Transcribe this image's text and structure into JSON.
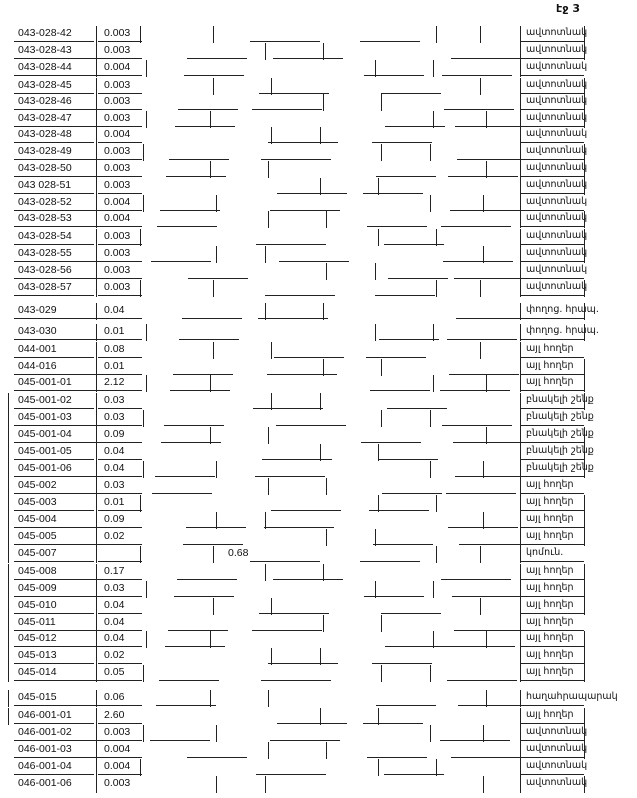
{
  "page_number": "էջ 3",
  "rows": [
    {
      "id": "043-028-42",
      "value": "0.003",
      "label": "ավտոտնակ"
    },
    {
      "id": "043-028-43",
      "value": "0.003",
      "label": "ավտոտնակ"
    },
    {
      "id": "043-028-44",
      "value": "0.004",
      "label": "ավտոտնակ"
    },
    {
      "id": "043-028-45",
      "value": "0.003",
      "label": "ավտոտնակ"
    },
    {
      "id": "043-028-46",
      "value": "0.003",
      "label": "ավտոտնակ"
    },
    {
      "id": "043-028-47",
      "value": "0.003",
      "label": "ավտոտնակ"
    },
    {
      "id": "043-028-48",
      "value": "0.004",
      "label": "ավտոտնակ"
    },
    {
      "id": "043-028-49",
      "value": "0.003",
      "label": "ավտոտնակ"
    },
    {
      "id": "043-028-50",
      "value": "0.003",
      "label": "ավտոտնակ"
    },
    {
      "id": "043 028-51",
      "value": "0.003",
      "label": "ավտոտնակ"
    },
    {
      "id": "043-028-52",
      "value": "0.004",
      "label": "ավտոտնակ"
    },
    {
      "id": "043-028-53",
      "value": "0.004",
      "label": "ավտոտնակ"
    },
    {
      "id": "043-028-54",
      "value": "0.003",
      "label": "ավտոտնակ"
    },
    {
      "id": "043-028-55",
      "value": "0.003",
      "label": "ավտոտնակ"
    },
    {
      "id": "043-028-56",
      "value": "0.003",
      "label": "ավտոտնակ"
    },
    {
      "id": "043-028-57",
      "value": "0.003",
      "label": "ավտոտնակ"
    },
    {
      "id": "043-029",
      "value": "0.04",
      "label": "փողոց. հրապ."
    },
    {
      "id": "043-030",
      "value": "0.01",
      "label": "փողոց. հրապ."
    },
    {
      "id": "044-001",
      "value": "0.08",
      "label": "այլ հողեր"
    },
    {
      "id": "044-016",
      "value": "0.01",
      "label": "այլ հողեր"
    },
    {
      "id": "045-001-01",
      "value": "2.12",
      "label": "այլ հողեր"
    },
    {
      "id": "045-001-02",
      "value": "0.03",
      "label": "բնակելի շենք"
    },
    {
      "id": "045-001-03",
      "value": "0.03",
      "label": "բնակելի շենք"
    },
    {
      "id": "045-001-04",
      "value": "0.09",
      "label": "բնակելի շենք"
    },
    {
      "id": "045-001-05",
      "value": "0.04",
      "label": "բնակելի շենք"
    },
    {
      "id": "045-001-06",
      "value": "0.04",
      "label": "բնակելի շենք"
    },
    {
      "id": "045-002",
      "value": "0.03",
      "label": "այլ հողեր"
    },
    {
      "id": "045-003",
      "value": "0.01",
      "label": "այլ հողեր"
    },
    {
      "id": "045-004",
      "value": "0.09",
      "label": "այլ հողեր"
    },
    {
      "id": "045-005",
      "value": "0.02",
      "label": "այլ հողեր"
    },
    {
      "id": "045-007",
      "value_far": "0.68",
      "label": "կոմուն."
    },
    {
      "id": "045-008",
      "value": "0.17",
      "label": "այլ հողեր"
    },
    {
      "id": "045-009",
      "value": "0.03",
      "label": "այլ հողեր"
    },
    {
      "id": "045-010",
      "value": "0.04",
      "label": "այլ հողեր"
    },
    {
      "id": "045-011",
      "value": "0.04",
      "label": "այլ հողեր"
    },
    {
      "id": "045-012",
      "value": "0.04",
      "label": "այլ հողեր"
    },
    {
      "id": "045-013",
      "value": "0.02",
      "label": "այլ հողեր"
    },
    {
      "id": "045-014",
      "value": "0.05",
      "label": "այլ հողեր"
    },
    {
      "id": "045-015",
      "value": "0.06",
      "label": "հաղահրապարակ"
    },
    {
      "id": "046-001-01",
      "value": "2.60",
      "label": "այլ հողեր"
    },
    {
      "id": "046-001-02",
      "value": "0.003",
      "label": "ավտոտնակ"
    },
    {
      "id": "046-001-03",
      "value": "0.004",
      "label": "ավտոտնակ"
    },
    {
      "id": "046-001-04",
      "value": "0.004",
      "label": "ավտոտնակ"
    },
    {
      "id": "046-001-06",
      "value": "0.003",
      "label": "ավտոտնակ"
    }
  ]
}
